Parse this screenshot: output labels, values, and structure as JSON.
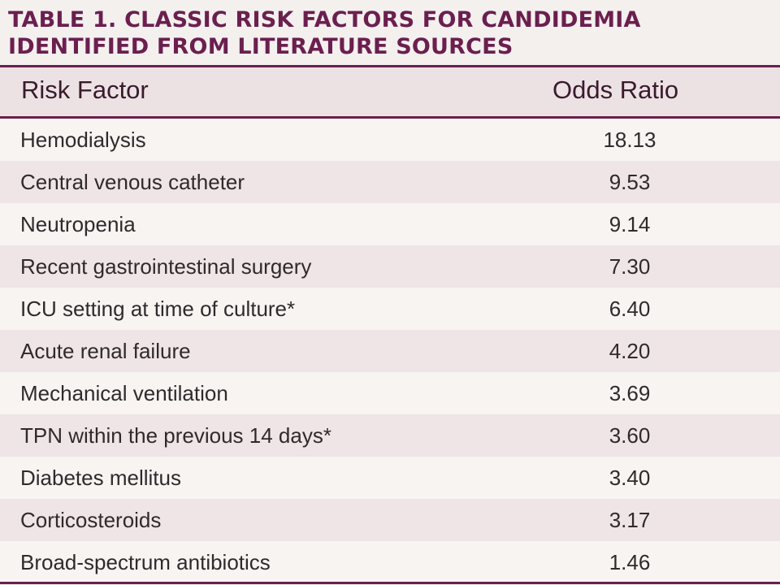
{
  "title": {
    "line1": "TABLE 1. CLASSIC RISK FACTORS FOR CANDIDEMIA",
    "line2": "IDENTIFIED FROM LITERATURE SOURCES"
  },
  "table": {
    "headers": {
      "factor": "Risk Factor",
      "odds": "Odds Ratio"
    },
    "rows": [
      {
        "factor": "Hemodialysis",
        "odds": "18.13"
      },
      {
        "factor": "Central venous catheter",
        "odds": "9.53"
      },
      {
        "factor": "Neutropenia",
        "odds": "9.14"
      },
      {
        "factor": "Recent gastrointestinal surgery",
        "odds": "7.30"
      },
      {
        "factor": "ICU setting at time of culture*",
        "odds": "6.40"
      },
      {
        "factor": "Acute renal failure",
        "odds": "4.20"
      },
      {
        "factor": "Mechanical ventilation",
        "odds": "3.69"
      },
      {
        "factor": "TPN within the previous 14 days*",
        "odds": "3.60"
      },
      {
        "factor": "Diabetes mellitus",
        "odds": "3.40"
      },
      {
        "factor": "Corticosteroids",
        "odds": "3.17"
      },
      {
        "factor": "Broad-spectrum antibiotics",
        "odds": "1.46"
      }
    ]
  }
}
